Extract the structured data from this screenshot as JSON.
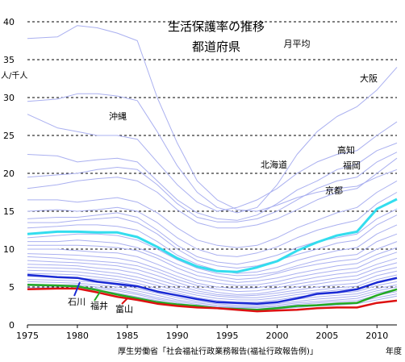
{
  "chart_data": {
    "type": "line",
    "title": "生活保護率の推移",
    "subtitle": "都道府県",
    "period_label": "月平均",
    "ylabel": "人/千人",
    "xlabel": "年度",
    "source": "厚生労働省「社会福祉行政業務報告(福祉行政報告例)」",
    "xlim": [
      1975,
      2012
    ],
    "ylim": [
      0,
      40
    ],
    "x_ticks": [
      1975,
      1980,
      1985,
      1990,
      1995,
      2000,
      2005,
      2010
    ],
    "y_ticks": [
      0,
      5,
      10,
      15,
      20,
      25,
      30,
      35,
      40
    ],
    "grid": "horizontal dashed",
    "annotations": [
      "沖縄",
      "大阪",
      "北海道",
      "高知",
      "福岡",
      "京都",
      "石川",
      "福井",
      "富山"
    ],
    "highlighted_series": [
      {
        "name": "national average (cyan)",
        "color": "#33ddee",
        "x": [
          1975,
          1978,
          1980,
          1982,
          1984,
          1986,
          1988,
          1990,
          1992,
          1994,
          1996,
          1998,
          2000,
          2002,
          2004,
          2006,
          2008,
          2010,
          2012
        ],
        "y": [
          12.0,
          12.3,
          12.3,
          12.2,
          12.2,
          11.6,
          10.3,
          8.8,
          7.7,
          7.1,
          7.0,
          7.6,
          8.4,
          9.8,
          10.9,
          11.8,
          12.3,
          15.3,
          16.6
        ]
      },
      {
        "name": "石川",
        "color": "#1a2ad4",
        "x": [
          1975,
          1978,
          1980,
          1982,
          1984,
          1986,
          1988,
          1990,
          1992,
          1994,
          1996,
          1998,
          2000,
          2002,
          2004,
          2006,
          2008,
          2010,
          2012
        ],
        "y": [
          6.6,
          6.3,
          6.2,
          5.7,
          5.4,
          5.1,
          4.4,
          3.9,
          3.4,
          3.0,
          2.9,
          2.8,
          3.0,
          3.5,
          4.1,
          4.3,
          4.7,
          5.6,
          6.2
        ]
      },
      {
        "name": "福井",
        "color": "#22aa22",
        "x": [
          1975,
          1978,
          1980,
          1982,
          1984,
          1986,
          1988,
          1990,
          1992,
          1994,
          1996,
          1998,
          2000,
          2002,
          2004,
          2006,
          2008,
          2010,
          2012
        ],
        "y": [
          5.3,
          5.2,
          5.1,
          4.6,
          4.0,
          3.5,
          3.0,
          2.7,
          2.5,
          2.2,
          2.1,
          2.0,
          2.2,
          2.5,
          2.6,
          2.8,
          2.9,
          3.9,
          4.7
        ]
      },
      {
        "name": "富山",
        "color": "#dd1111",
        "x": [
          1975,
          1978,
          1980,
          1982,
          1984,
          1986,
          1988,
          1990,
          1992,
          1994,
          1996,
          1998,
          2000,
          2002,
          2004,
          2006,
          2008,
          2010,
          2012
        ],
        "y": [
          4.7,
          4.8,
          4.8,
          4.3,
          3.7,
          3.3,
          2.8,
          2.5,
          2.3,
          2.2,
          2.0,
          1.8,
          1.9,
          2.0,
          2.2,
          2.3,
          2.3,
          2.9,
          3.2
        ]
      }
    ],
    "background_series": [
      {
        "y": [
          37.8,
          38.0,
          39.5,
          39.2,
          38.5,
          37.5,
          30.0,
          24.0,
          19.0,
          16.5,
          15.2,
          15.0,
          15.8,
          16.8,
          17.5,
          18.0,
          18.3,
          19.5,
          20.5
        ]
      },
      {
        "y": [
          29.5,
          29.8,
          30.5,
          30.5,
          30.2,
          29.6,
          25.5,
          21.0,
          17.5,
          15.5,
          14.8,
          15.5,
          18.5,
          22.5,
          25.5,
          27.5,
          28.8,
          31.0,
          34.0
        ]
      },
      {
        "y": [
          27.8,
          26.0,
          25.5,
          25.0,
          25.0,
          24.5,
          21.5,
          18.5,
          16.2,
          15.0,
          15.5,
          16.5,
          18.0,
          20.0,
          21.5,
          22.5,
          23.0,
          25.0,
          26.8
        ]
      },
      {
        "y": [
          22.5,
          22.3,
          21.5,
          21.8,
          22.0,
          21.5,
          19.0,
          16.5,
          14.8,
          14.0,
          13.8,
          14.5,
          16.0,
          17.8,
          19.0,
          20.5,
          21.2,
          23.0,
          24.0
        ]
      },
      {
        "y": [
          19.5,
          19.8,
          20.0,
          20.5,
          20.8,
          20.5,
          18.5,
          16.0,
          14.2,
          13.6,
          13.6,
          14.0,
          15.0,
          16.5,
          18.0,
          19.0,
          19.5,
          21.5,
          22.8
        ]
      },
      {
        "y": [
          18.0,
          18.5,
          19.0,
          19.3,
          19.5,
          19.0,
          17.5,
          15.2,
          13.5,
          12.8,
          12.8,
          13.2,
          14.0,
          15.2,
          16.5,
          17.5,
          18.0,
          20.0,
          22.0
        ]
      },
      {
        "y": [
          16.5,
          16.5,
          16.2,
          16.5,
          16.8,
          16.2,
          14.8,
          12.8,
          11.2,
          10.5,
          10.2,
          10.5,
          11.5,
          12.8,
          13.8,
          14.8,
          15.5,
          17.5,
          19.0
        ]
      },
      {
        "y": [
          15.0,
          15.2,
          15.0,
          15.2,
          15.5,
          15.0,
          13.5,
          11.5,
          10.0,
          9.2,
          9.0,
          9.5,
          10.3,
          11.5,
          12.5,
          13.2,
          13.8,
          16.0,
          17.5
        ]
      },
      {
        "y": [
          14.0,
          14.2,
          14.2,
          14.5,
          14.8,
          14.2,
          12.5,
          10.5,
          9.0,
          8.3,
          8.0,
          8.5,
          9.2,
          10.2,
          11.0,
          11.5,
          12.0,
          14.0,
          15.3
        ]
      },
      {
        "y": [
          13.5,
          13.5,
          13.8,
          14.0,
          14.2,
          13.5,
          12.0,
          10.0,
          8.5,
          7.8,
          7.5,
          7.8,
          8.5,
          9.3,
          10.0,
          10.8,
          11.2,
          13.2,
          14.5
        ]
      },
      {
        "y": [
          12.8,
          13.0,
          13.2,
          13.2,
          13.0,
          12.5,
          11.0,
          9.2,
          8.0,
          7.2,
          6.8,
          7.0,
          7.6,
          8.5,
          9.2,
          9.8,
          10.2,
          12.0,
          13.2
        ]
      },
      {
        "y": [
          11.5,
          11.8,
          12.0,
          12.0,
          11.8,
          11.2,
          10.0,
          8.6,
          7.5,
          6.8,
          6.5,
          6.6,
          7.0,
          7.8,
          8.5,
          9.0,
          9.3,
          11.0,
          12.0
        ]
      },
      {
        "y": [
          11.0,
          11.0,
          11.2,
          11.0,
          10.8,
          10.2,
          9.2,
          8.0,
          7.0,
          6.4,
          6.0,
          6.2,
          6.8,
          7.5,
          8.0,
          8.4,
          8.7,
          10.0,
          11.0
        ]
      },
      {
        "y": [
          10.5,
          10.5,
          10.5,
          10.4,
          10.2,
          9.8,
          8.8,
          7.5,
          6.5,
          6.0,
          5.6,
          5.8,
          6.2,
          6.8,
          7.3,
          7.8,
          8.1,
          9.3,
          10.2
        ]
      },
      {
        "y": [
          10.0,
          10.0,
          9.8,
          9.6,
          9.5,
          9.0,
          8.0,
          6.9,
          6.0,
          5.5,
          5.2,
          5.3,
          5.7,
          6.3,
          6.8,
          7.2,
          7.5,
          8.7,
          9.6
        ]
      },
      {
        "y": [
          9.4,
          9.3,
          9.2,
          9.0,
          8.8,
          8.3,
          7.4,
          6.4,
          5.5,
          5.0,
          4.8,
          4.9,
          5.3,
          5.8,
          6.3,
          6.7,
          7.0,
          8.0,
          8.8
        ]
      },
      {
        "y": [
          9.0,
          8.8,
          8.6,
          8.4,
          8.2,
          7.8,
          7.0,
          6.0,
          5.2,
          4.7,
          4.4,
          4.5,
          4.9,
          5.4,
          5.8,
          6.2,
          6.5,
          7.5,
          8.2
        ]
      },
      {
        "y": [
          8.5,
          8.3,
          8.2,
          8.0,
          7.8,
          7.3,
          6.5,
          5.6,
          4.8,
          4.3,
          4.0,
          4.1,
          4.5,
          5.0,
          5.4,
          5.8,
          6.0,
          7.0,
          7.6
        ]
      },
      {
        "y": [
          8.0,
          7.9,
          7.8,
          7.5,
          7.3,
          6.8,
          6.0,
          5.2,
          4.5,
          4.0,
          3.8,
          3.9,
          4.2,
          4.6,
          5.0,
          5.3,
          5.5,
          6.5,
          7.1
        ]
      },
      {
        "y": [
          7.6,
          7.5,
          7.4,
          7.1,
          6.8,
          6.3,
          5.6,
          4.8,
          4.2,
          3.8,
          3.6,
          3.6,
          3.9,
          4.3,
          4.6,
          4.9,
          5.1,
          6.0,
          6.6
        ]
      },
      {
        "y": [
          7.2,
          7.1,
          7.0,
          6.7,
          6.4,
          5.9,
          5.2,
          4.5,
          3.9,
          3.5,
          3.3,
          3.3,
          3.6,
          4.0,
          4.3,
          4.6,
          4.8,
          5.6,
          6.1
        ]
      },
      {
        "y": [
          6.8,
          6.7,
          6.6,
          6.3,
          6.0,
          5.5,
          4.8,
          4.2,
          3.6,
          3.2,
          3.0,
          3.0,
          3.3,
          3.7,
          4.0,
          4.2,
          4.4,
          5.2,
          5.7
        ]
      },
      {
        "y": [
          6.4,
          6.3,
          6.2,
          6.0,
          5.7,
          5.2,
          4.5,
          3.9,
          3.4,
          3.0,
          2.8,
          2.8,
          3.0,
          3.4,
          3.7,
          3.9,
          4.1,
          4.8,
          5.3
        ]
      },
      {
        "y": [
          6.0,
          5.9,
          5.8,
          5.6,
          5.3,
          4.8,
          4.2,
          3.6,
          3.1,
          2.8,
          2.6,
          2.6,
          2.8,
          3.1,
          3.4,
          3.6,
          3.8,
          4.5,
          5.0
        ]
      },
      {
        "y": [
          5.7,
          5.6,
          5.5,
          5.3,
          5.0,
          4.5,
          3.9,
          3.3,
          2.9,
          2.6,
          2.4,
          2.4,
          2.6,
          2.9,
          3.1,
          3.3,
          3.5,
          4.2,
          4.7
        ]
      },
      {
        "y": [
          5.4,
          5.3,
          5.3,
          5.0,
          4.7,
          4.2,
          3.6,
          3.1,
          2.7,
          2.4,
          2.3,
          2.3,
          2.4,
          2.7,
          2.9,
          3.1,
          3.2,
          3.9,
          4.4
        ]
      },
      {
        "y": [
          5.2,
          5.1,
          5.0,
          4.8,
          4.5,
          4.0,
          3.4,
          2.9,
          2.5,
          2.3,
          2.2,
          2.1,
          2.3,
          2.5,
          2.7,
          2.9,
          3.0,
          3.6,
          4.1
        ]
      },
      {
        "y": [
          4.9,
          4.9,
          4.8,
          4.6,
          4.2,
          3.7,
          3.2,
          2.7,
          2.4,
          2.2,
          2.0,
          2.0,
          2.1,
          2.3,
          2.5,
          2.6,
          2.8,
          3.3,
          3.8
        ]
      }
    ],
    "background_color": "#aab0f0"
  }
}
